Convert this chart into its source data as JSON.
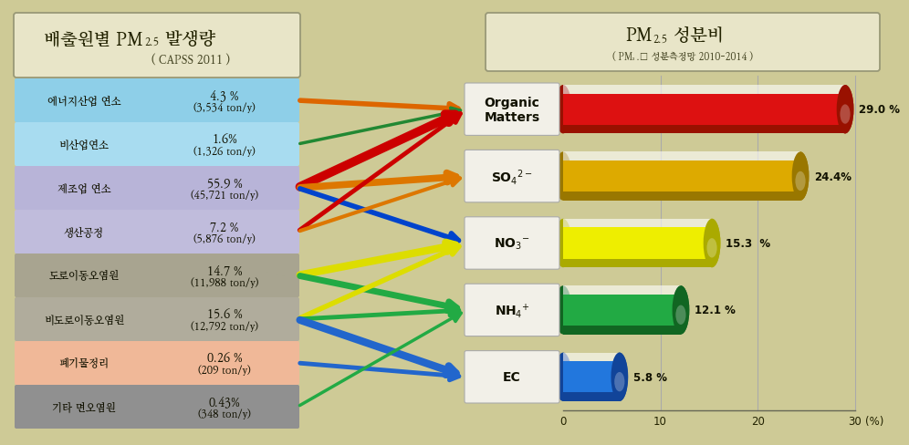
{
  "background_color": "#ceca96",
  "left_panel": {
    "title_bg": "#e8e5c8",
    "rows": [
      {
        "label": "에너지산업 연소",
        "pct": "4.3 %",
        "ton": "(3,534 ton/y)",
        "bg": "#8ecfe8"
      },
      {
        "label": "비산업연소",
        "pct": "1.6%",
        "ton": "(1,326 ton/y)",
        "bg": "#a8dcf0"
      },
      {
        "label": "제조업 연소",
        "pct": "55.9 %",
        "ton": "(45,721 ton/y)",
        "bg": "#b8b4d8"
      },
      {
        "label": "생산공정",
        "pct": "7.2 %",
        "ton": "(5,876 ton/y)",
        "bg": "#c0bcdc"
      },
      {
        "label": "도로이동오염원",
        "pct": "14.7 %",
        "ton": "(11,988 ton/y)",
        "bg": "#a8a490"
      },
      {
        "label": "비도로이동오염원",
        "pct": "15.6 %",
        "ton": "(12,792 ton/y)",
        "bg": "#b0ac9c"
      },
      {
        "label": "폐기물정리",
        "pct": "0.26 %",
        "ton": "(209 ton/y)",
        "bg": "#f0b898"
      },
      {
        "label": "기타 면오염원",
        "pct": "0.43%",
        "ton": "(348 ton/y)",
        "bg": "#909090"
      }
    ]
  },
  "right_panel": {
    "title_bg": "#e8e5c8",
    "bars": [
      {
        "label": "Organic\nMatters",
        "value": 29.0,
        "color": "#dd1111",
        "dark_color": "#991100",
        "pct_label": "29.0 %"
      },
      {
        "label": "SO",
        "value": 24.4,
        "color": "#ddaa00",
        "dark_color": "#997700",
        "pct_label": "24.4%",
        "sup": "2-",
        "sub": "4"
      },
      {
        "label": "NO",
        "value": 15.3,
        "color": "#eeee00",
        "dark_color": "#aaaa00",
        "pct_label": "15.3  %",
        "sup": "-",
        "sub": "3"
      },
      {
        "label": "NH",
        "value": 12.1,
        "color": "#22aa44",
        "dark_color": "#116622",
        "pct_label": "12.1 %",
        "sup": "+",
        "sub": "4"
      },
      {
        "label": "EC",
        "value": 5.8,
        "color": "#2277dd",
        "dark_color": "#114499",
        "pct_label": "5.8 %"
      }
    ],
    "xlim": [
      0,
      32
    ],
    "xticks": [
      0,
      10,
      20,
      30
    ],
    "xlabel": "(%)"
  },
  "arrows": [
    {
      "src_row": 0,
      "dst_bar": 0,
      "color": "#dd6600",
      "lw": 4
    },
    {
      "src_row": 1,
      "dst_bar": 0,
      "color": "#228833",
      "lw": 2.5
    },
    {
      "src_row": 2,
      "dst_bar": 0,
      "color": "#cc0000",
      "lw": 7
    },
    {
      "src_row": 2,
      "dst_bar": 1,
      "color": "#dd7700",
      "lw": 5.5
    },
    {
      "src_row": 2,
      "dst_bar": 2,
      "color": "#0044cc",
      "lw": 4
    },
    {
      "src_row": 3,
      "dst_bar": 0,
      "color": "#cc0000",
      "lw": 3.5
    },
    {
      "src_row": 3,
      "dst_bar": 1,
      "color": "#dd7700",
      "lw": 3
    },
    {
      "src_row": 4,
      "dst_bar": 2,
      "color": "#dddd00",
      "lw": 6
    },
    {
      "src_row": 4,
      "dst_bar": 3,
      "color": "#22aa44",
      "lw": 5
    },
    {
      "src_row": 5,
      "dst_bar": 2,
      "color": "#dddd00",
      "lw": 4
    },
    {
      "src_row": 5,
      "dst_bar": 3,
      "color": "#22aa44",
      "lw": 3.5
    },
    {
      "src_row": 5,
      "dst_bar": 4,
      "color": "#2266cc",
      "lw": 6
    },
    {
      "src_row": 6,
      "dst_bar": 4,
      "color": "#2266cc",
      "lw": 3.5
    },
    {
      "src_row": 7,
      "dst_bar": 3,
      "color": "#22aa44",
      "lw": 2.5
    }
  ]
}
